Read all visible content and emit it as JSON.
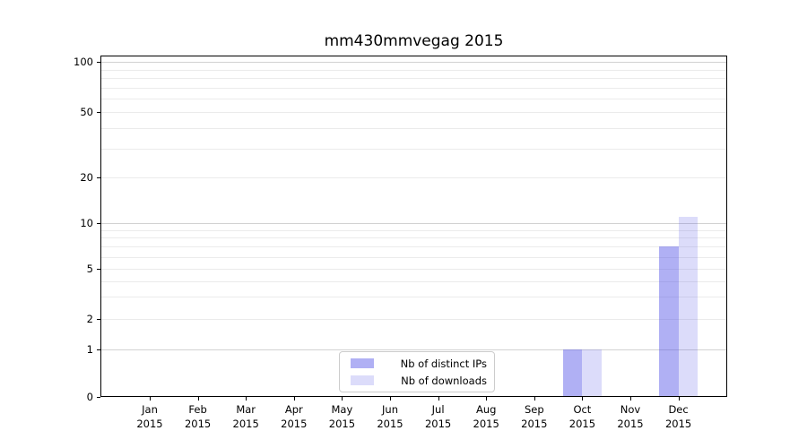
{
  "chart_data": {
    "type": "bar",
    "title": "mm430mmvegag 2015",
    "year_label": "2015",
    "categories": [
      "Jan",
      "Feb",
      "Mar",
      "Apr",
      "May",
      "Jun",
      "Jul",
      "Aug",
      "Sep",
      "Oct",
      "Nov",
      "Dec"
    ],
    "series": [
      {
        "name": "Nb of distinct IPs",
        "color": "rgba(80,80,230,0.45)",
        "values": [
          0,
          0,
          0,
          0,
          0,
          0,
          0,
          0,
          0,
          1,
          0,
          7
        ]
      },
      {
        "name": "Nb of downloads",
        "color": "rgba(80,80,230,0.20)",
        "values": [
          0,
          0,
          0,
          0,
          0,
          0,
          0,
          0,
          0,
          1,
          0,
          11
        ]
      }
    ],
    "y_axis": {
      "scale": "symlog",
      "ticks": [
        0,
        1,
        2,
        5,
        10,
        20,
        50,
        100
      ],
      "minor_grid_values": [
        2,
        3,
        4,
        5,
        6,
        7,
        8,
        9,
        20,
        30,
        40,
        50,
        60,
        70,
        80,
        90
      ],
      "major_grid_values": [
        1,
        10,
        100
      ],
      "range": [
        0,
        105
      ]
    },
    "x_axis": {
      "label_line2": "2015"
    },
    "legend": {
      "position": "lower-center"
    },
    "colors": {
      "bar_base": "#5050e6",
      "grid_major": "#d2d2d2",
      "grid_minor": "#ebebeb",
      "legend_border": "#cccccc"
    }
  }
}
